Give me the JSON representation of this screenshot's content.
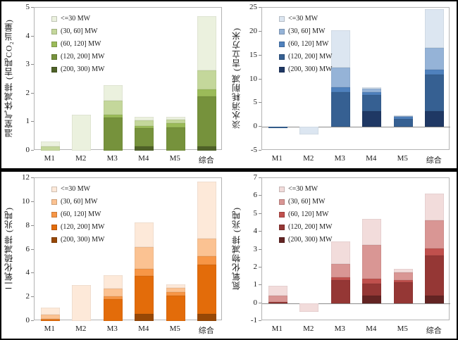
{
  "chart_data": [
    {
      "id": "greenhouse-gas",
      "type": "bar",
      "stacked": true,
      "title": "",
      "ylabel": "温室气体减排 (吉吨CO₂当量)",
      "xlabel": "",
      "categories": [
        "M1",
        "M2",
        "M3",
        "M4",
        "M5",
        "综合"
      ],
      "ylim": [
        0,
        5
      ],
      "yticks": [
        0,
        1,
        2,
        3,
        4,
        5
      ],
      "grid": false,
      "legend_position": "top-left-inside",
      "series": [
        {
          "name": "<=30 MW",
          "color": "#EBF1DE",
          "values": [
            0.18,
            1.25,
            0.55,
            0.13,
            0.1,
            1.9
          ]
        },
        {
          "name": "(30, 60] MW",
          "color": "#C4D79B",
          "values": [
            0.15,
            0,
            0.5,
            0.18,
            0.13,
            0.65
          ]
        },
        {
          "name": "(60, 120] MW",
          "color": "#9BBB59",
          "values": [
            0,
            0,
            0.1,
            0.07,
            0.13,
            0.25
          ]
        },
        {
          "name": "(120, 200] MW",
          "color": "#76923C",
          "values": [
            0,
            0,
            1.15,
            0.65,
            0.82,
            1.75
          ]
        },
        {
          "name": "(200, 300) MW",
          "color": "#4F6228",
          "values": [
            0,
            0,
            0,
            0.15,
            0,
            0.15
          ]
        }
      ]
    },
    {
      "id": "freshwater",
      "type": "bar",
      "stacked": true,
      "title": "",
      "ylabel": "淡水消耗削减 (吉立方米)",
      "xlabel": "",
      "categories": [
        "M1",
        "M2",
        "M3",
        "M4",
        "M5",
        "综合"
      ],
      "ylim": [
        -5,
        25
      ],
      "yticks": [
        -5,
        0,
        5,
        10,
        15,
        20,
        25
      ],
      "grid": false,
      "legend_position": "top-left-inside",
      "series": [
        {
          "name": "<=30 MW",
          "color": "#DCE6F1",
          "values": [
            0,
            -1.6,
            7.7,
            0.3,
            0.1,
            8.1
          ]
        },
        {
          "name": "(30, 60] MW",
          "color": "#95B3D7",
          "values": [
            0,
            0,
            4.2,
            0.7,
            0.2,
            4.6
          ]
        },
        {
          "name": "(60, 120] MW",
          "color": "#4F81BD",
          "values": [
            0,
            0,
            1.0,
            0.6,
            0.5,
            1.1
          ]
        },
        {
          "name": "(120, 200] MW",
          "color": "#366092",
          "values": [
            -0.2,
            0,
            7.3,
            3.4,
            1.6,
            7.6
          ]
        },
        {
          "name": "(200, 300) MW",
          "color": "#1F3864",
          "values": [
            0,
            0,
            0,
            3.3,
            0,
            3.3
          ]
        }
      ]
    },
    {
      "id": "sulfur-dioxide",
      "type": "bar",
      "stacked": true,
      "title": "",
      "ylabel": "二氧化硫减排 (兆吨)",
      "xlabel": "",
      "categories": [
        "M1",
        "M2",
        "M3",
        "M4",
        "M5",
        "综合"
      ],
      "ylim": [
        0,
        12
      ],
      "yticks": [
        0,
        2,
        4,
        6,
        8,
        10,
        12
      ],
      "grid": false,
      "legend_position": "top-left-inside",
      "series": [
        {
          "name": "<=30 MW",
          "color": "#FDE9D9",
          "values": [
            0.6,
            3.0,
            1.15,
            2.05,
            0.3,
            4.8
          ]
        },
        {
          "name": "(30, 60] MW",
          "color": "#FBC292",
          "values": [
            0.35,
            0,
            0.65,
            1.8,
            0.35,
            1.45
          ]
        },
        {
          "name": "(60, 120] MW",
          "color": "#F79646",
          "values": [
            0.08,
            0,
            0.2,
            0.6,
            0.3,
            0.7
          ]
        },
        {
          "name": "(120, 200] MW",
          "color": "#E36C0A",
          "values": [
            0.12,
            0,
            1.85,
            3.2,
            2.1,
            4.15
          ]
        },
        {
          "name": "(200, 300) MW",
          "color": "#974806",
          "values": [
            0,
            0,
            0,
            0.6,
            0,
            0.6
          ]
        }
      ]
    },
    {
      "id": "nitrogen-oxides",
      "type": "bar",
      "stacked": true,
      "title": "",
      "ylabel": "氮氧化物减排 (兆吨)",
      "xlabel": "",
      "categories": [
        "M1",
        "M2",
        "M3",
        "M4",
        "M5",
        "综合"
      ],
      "ylim": [
        -1,
        7
      ],
      "yticks": [
        -1,
        0,
        1,
        2,
        3,
        4,
        5,
        6,
        7
      ],
      "grid": false,
      "legend_position": "top-left-inside",
      "series": [
        {
          "name": "<=30 MW",
          "color": "#F2DCDB",
          "values": [
            0.55,
            -0.48,
            1.25,
            1.47,
            0.2,
            1.5
          ]
        },
        {
          "name": "(30, 60] MW",
          "color": "#D99694",
          "values": [
            0.34,
            0,
            0.75,
            1.87,
            0.4,
            1.6
          ]
        },
        {
          "name": "(60, 120] MW",
          "color": "#C0504D",
          "values": [
            0,
            0,
            0.15,
            0.28,
            0.15,
            0.4
          ]
        },
        {
          "name": "(120, 200] MW",
          "color": "#953735",
          "values": [
            0.08,
            0,
            1.3,
            0.7,
            1.15,
            2.25
          ]
        },
        {
          "name": "(200, 300) MW",
          "color": "#632423",
          "values": [
            0,
            0,
            0,
            0.4,
            0,
            0.4
          ]
        }
      ]
    }
  ]
}
